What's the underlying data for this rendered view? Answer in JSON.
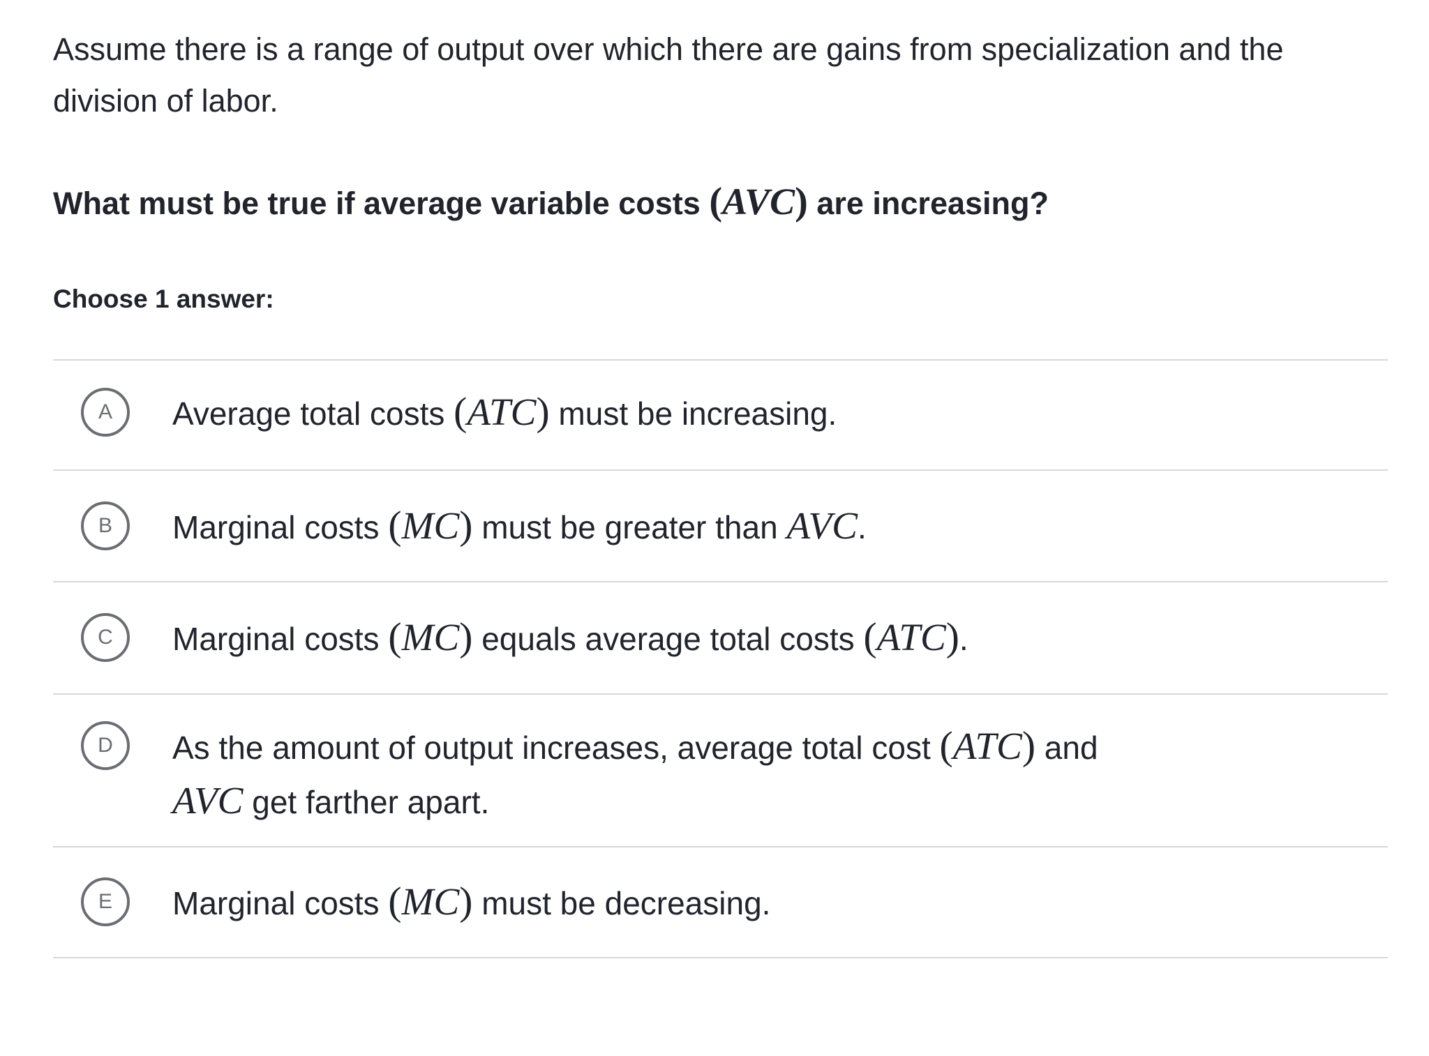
{
  "intro": "Assume there is a range of output over which there are gains from specialization and the division of labor.",
  "question": {
    "pre": "What must be true if average variable costs ",
    "lp": "(",
    "math": "AVC",
    "rp": ")",
    "post": " are increasing?"
  },
  "instruction": "Choose 1 answer:",
  "choices": [
    {
      "letter": "A",
      "t1": "Average total costs ",
      "lp1": "(",
      "m1": "ATC",
      "rp1": ")",
      "t2": " must be increasing."
    },
    {
      "letter": "B",
      "t1": "Marginal costs ",
      "lp1": "(",
      "m1": "MC",
      "rp1": ")",
      "t2": " must be greater than ",
      "m2": "AVC",
      "t3": "."
    },
    {
      "letter": "C",
      "t1": "Marginal costs ",
      "lp1": "(",
      "m1": "MC",
      "rp1": ")",
      "t2": " equals average total costs ",
      "lp2": "(",
      "m2": "ATC",
      "rp2": ")",
      "t3": "."
    },
    {
      "letter": "D",
      "t1": "As the amount of output increases, average total cost ",
      "lp1": "(",
      "m1": "ATC",
      "rp1": ")",
      "t2": " and ",
      "m2": "AVC",
      "t3": " get farther apart."
    },
    {
      "letter": "E",
      "t1": "Marginal costs ",
      "lp1": "(",
      "m1": "MC",
      "rp1": ")",
      "t2": " must be decreasing."
    }
  ],
  "colors": {
    "text": "#21242c",
    "circle": "#6b6d72",
    "divider": "#d6d8da"
  }
}
